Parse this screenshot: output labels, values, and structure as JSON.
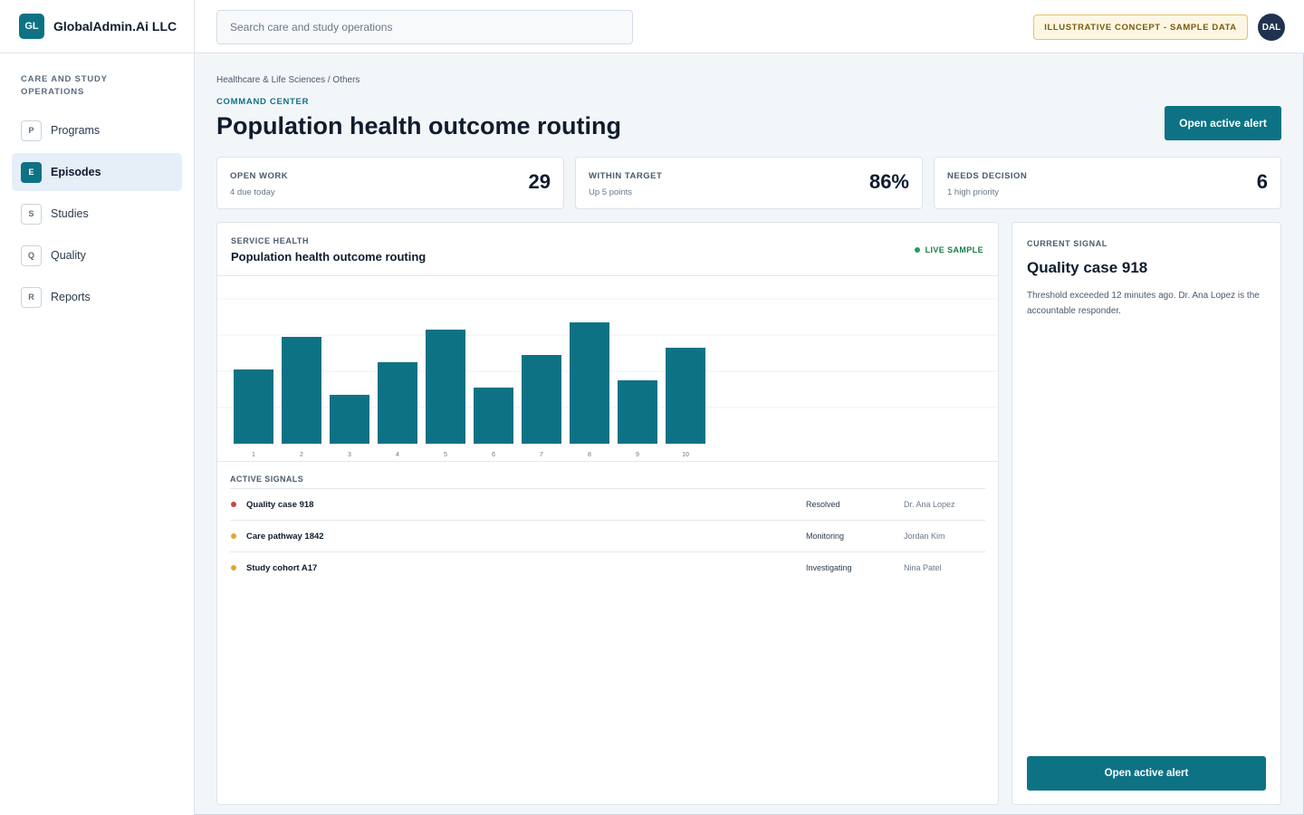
{
  "brand": {
    "logo": "GL",
    "name": "GlobalAdmin.Ai LLC"
  },
  "sidebar": {
    "section": "CARE AND STUDY OPERATIONS",
    "items": [
      {
        "letter": "P",
        "label": "Programs",
        "active": false
      },
      {
        "letter": "E",
        "label": "Episodes",
        "active": true
      },
      {
        "letter": "S",
        "label": "Studies",
        "active": false
      },
      {
        "letter": "Q",
        "label": "Quality",
        "active": false
      },
      {
        "letter": "R",
        "label": "Reports",
        "active": false
      }
    ]
  },
  "topbar": {
    "search_placeholder": "Search care and study operations",
    "badge": "ILLUSTRATIVE CONCEPT - SAMPLE DATA",
    "avatar": "DAL"
  },
  "header": {
    "breadcrumb": "Healthcare & Life Sciences / Others",
    "eyebrow": "COMMAND CENTER",
    "title": "Population health outcome routing",
    "action": "Open active alert"
  },
  "kpis": [
    {
      "label": "OPEN WORK",
      "sub": "4 due today",
      "value": "29"
    },
    {
      "label": "WITHIN TARGET",
      "sub": "Up 5 points",
      "value": "86%"
    },
    {
      "label": "NEEDS DECISION",
      "sub": "1 high priority",
      "value": "6"
    }
  ],
  "panel": {
    "eyebrow": "SERVICE HEALTH",
    "title": "Population health outcome routing",
    "live": "LIVE SAMPLE",
    "signals_label": "ACTIVE SIGNALS",
    "signals": [
      {
        "name": "Quality case 918",
        "status": "Resolved",
        "owner": "Dr. Ana Lopez",
        "color": "#c8453f"
      },
      {
        "name": "Care pathway 1842",
        "status": "Monitoring",
        "owner": "Jordan Kim",
        "color": "#e0a82e"
      },
      {
        "name": "Study cohort A17",
        "status": "Investigating",
        "owner": "Nina Patel",
        "color": "#e0a82e"
      }
    ]
  },
  "chart_data": {
    "type": "bar",
    "categories": [
      "1",
      "2",
      "3",
      "4",
      "5",
      "6",
      "7",
      "8",
      "9",
      "10"
    ],
    "values": [
      41,
      59,
      27,
      45,
      63,
      31,
      49,
      67,
      35,
      53
    ],
    "ylim": [
      0,
      90
    ],
    "grid": true,
    "color": "#0e7285"
  },
  "side": {
    "eyebrow": "CURRENT SIGNAL",
    "title": "Quality case 918",
    "body": "Threshold exceeded 12 minutes ago. Dr. Ana Lopez is the accountable responder.",
    "action": "Open active alert"
  }
}
